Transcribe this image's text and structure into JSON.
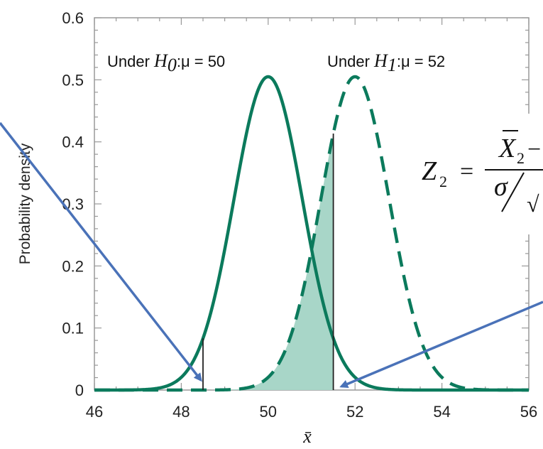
{
  "chart_data": {
    "type": "line",
    "ylabel": "Probability density",
    "xlabel": "x̄",
    "xlim": [
      46,
      56
    ],
    "ylim": [
      0,
      0.6
    ],
    "x_ticks": [
      "46",
      "48",
      "50",
      "52",
      "54",
      "56"
    ],
    "y_ticks": [
      "0",
      "0.1",
      "0.2",
      "0.3",
      "0.4",
      "0.5",
      "0.6"
    ],
    "grid": false,
    "colors": {
      "curve": "#0b7a5c",
      "fill": "#a8d6c8",
      "arrow": "#4a72b8"
    },
    "series": [
      {
        "name": "Under H0: μ = 50",
        "mean": 50,
        "sd": 0.79,
        "style": "solid"
      },
      {
        "name": "Under H1: μ = 52",
        "mean": 52,
        "sd": 0.79,
        "style": "dashed"
      }
    ],
    "critical_values": [
      48.5,
      51.5
    ],
    "shaded_region": {
      "from": 48.5,
      "to": 51.5,
      "under": "H1"
    },
    "annotations": {
      "h0_prefix": "Under ",
      "h0_symbol": "H",
      "h0_sub": "0",
      "h0_suffix": ":μ  = 50",
      "h1_prefix": "Under ",
      "h1_symbol": "H",
      "h1_sub": "1",
      "h1_suffix": ":μ  = 52"
    },
    "formula": {
      "lhs": "Z",
      "lhs_sub": "2",
      "equals": "=",
      "numerator": "X",
      "numerator_sub": "2",
      "numerator_rest": " −",
      "denominator": "σ",
      "sqrt": "√"
    }
  }
}
